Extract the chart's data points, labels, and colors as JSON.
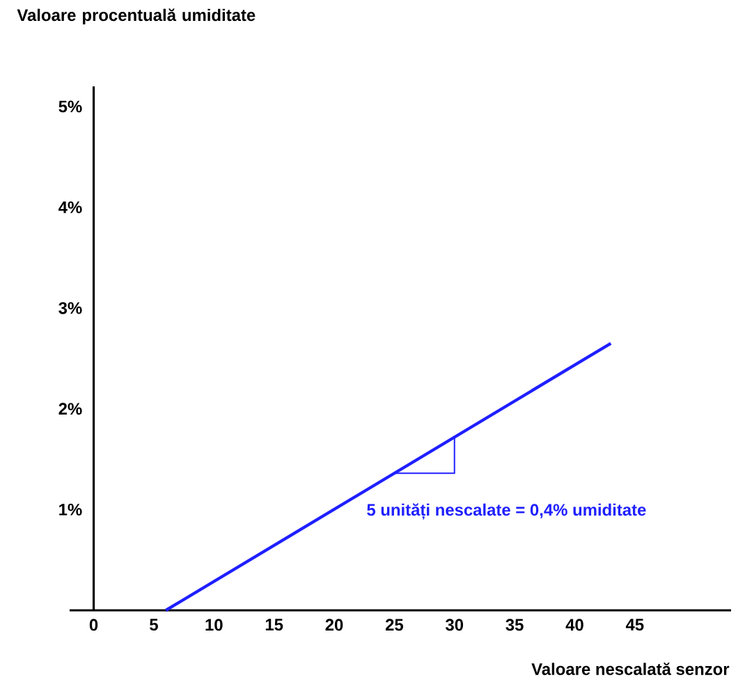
{
  "chart_data": {
    "type": "line",
    "xlabel": "Valoare nescalată senzor",
    "ylabel": "Valoare procentuală umiditate",
    "xlim": [
      -2,
      53
    ],
    "ylim": [
      0,
      5.2
    ],
    "xticks": [
      0,
      5,
      10,
      15,
      20,
      25,
      30,
      35,
      40,
      45
    ],
    "yticks": [
      {
        "value": 1,
        "label": "1%"
      },
      {
        "value": 2,
        "label": "2%"
      },
      {
        "value": 3,
        "label": "3%"
      },
      {
        "value": 4,
        "label": "4%"
      },
      {
        "value": 5,
        "label": "5%"
      }
    ],
    "annotations": [
      "5 unități nescalate = 0,4% umiditate"
    ],
    "series": [
      {
        "color": "#1f1fff",
        "x": [
          6,
          43
        ],
        "values": [
          0,
          2.65
        ]
      },
      {
        "color": "#1f1fff",
        "x": [
          25,
          30,
          30
        ],
        "values": [
          1.36,
          1.36,
          1.72
        ]
      }
    ]
  }
}
